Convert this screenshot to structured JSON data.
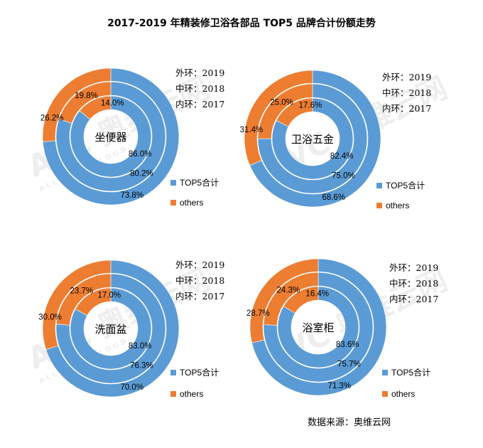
{
  "title": "2017-2019 年精装修卫浴各部品 TOP5 品牌合计份额走势",
  "source": "数据来源：奥维云网",
  "watermark": {
    "brand": "AVC 奥维云网",
    "sub": "ALL VIEW CLOUD"
  },
  "colors": {
    "top5": "#5B9BD5",
    "others": "#ED7D31"
  },
  "ring_labels": [
    "外环：2019",
    "中环：2018",
    "内环：2017"
  ],
  "legend": [
    "TOP5合计",
    "others"
  ],
  "chart_data": [
    {
      "type": "pie",
      "center_label": "坐便器",
      "series": [
        {
          "name": "外环：2019",
          "values": [
            73.8,
            26.2
          ]
        },
        {
          "name": "中环：2018",
          "values": [
            80.2,
            19.8
          ]
        },
        {
          "name": "内环：2017",
          "values": [
            86.0,
            14.0
          ]
        }
      ],
      "categories": [
        "TOP5合计",
        "others"
      ],
      "labels": {
        "top5": [
          "73.8%",
          "80.2%",
          "86.0%"
        ],
        "others": [
          "26.2%",
          "19.8%",
          "14.0%"
        ]
      }
    },
    {
      "type": "pie",
      "center_label": "卫浴五金",
      "series": [
        {
          "name": "外环：2019",
          "values": [
            68.6,
            31.4
          ]
        },
        {
          "name": "中环：2018",
          "values": [
            75.0,
            25.0
          ]
        },
        {
          "name": "内环：2017",
          "values": [
            82.4,
            17.6
          ]
        }
      ],
      "categories": [
        "TOP5合计",
        "others"
      ],
      "labels": {
        "top5": [
          "68.6%",
          "75.0%",
          "82.4%"
        ],
        "others": [
          "31.4%",
          "25.0%",
          "17.6%"
        ]
      }
    },
    {
      "type": "pie",
      "center_label": "洗面盆",
      "series": [
        {
          "name": "外环：2019",
          "values": [
            70.0,
            30.0
          ]
        },
        {
          "name": "中环：2018",
          "values": [
            76.3,
            23.7
          ]
        },
        {
          "name": "内环：2017",
          "values": [
            83.0,
            17.0
          ]
        }
      ],
      "categories": [
        "TOP5合计",
        "others"
      ],
      "labels": {
        "top5": [
          "70.0%",
          "76.3%",
          "83.0%"
        ],
        "others": [
          "30.0%",
          "23.7%",
          "17.0%"
        ]
      }
    },
    {
      "type": "pie",
      "center_label": "浴室柜",
      "series": [
        {
          "name": "外环：2019",
          "values": [
            71.3,
            28.7
          ]
        },
        {
          "name": "中环：2018",
          "values": [
            75.7,
            24.3
          ]
        },
        {
          "name": "内环：2017",
          "values": [
            83.6,
            16.4
          ]
        }
      ],
      "categories": [
        "TOP5合计",
        "others"
      ],
      "labels": {
        "top5": [
          "71.3%",
          "75.7%",
          "83.6%"
        ],
        "others": [
          "28.7%",
          "24.3%",
          "16.4%"
        ]
      }
    }
  ]
}
